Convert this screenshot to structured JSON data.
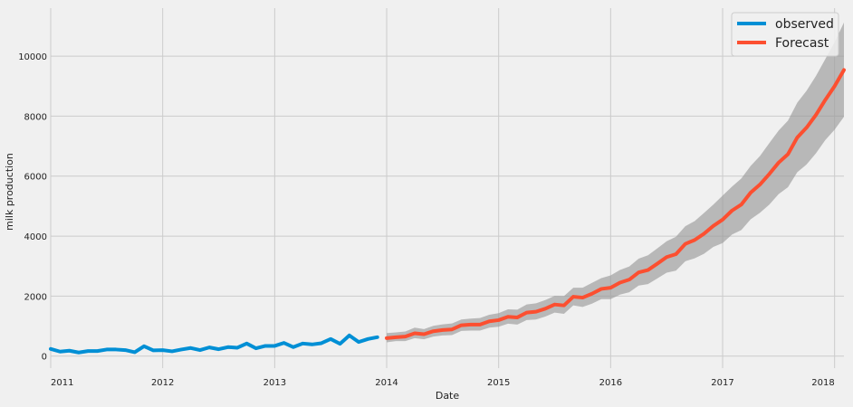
{
  "chart_data": {
    "type": "line",
    "title": "",
    "xlabel": "Date",
    "ylabel": "milk production",
    "xlim": [
      "2011-01",
      "2018-02"
    ],
    "ylim": [
      -400,
      11600
    ],
    "grid": true,
    "legend_position": "top-right",
    "x_ticks": [
      "2011",
      "2012",
      "2013",
      "2014",
      "2015",
      "2016",
      "2017",
      "2018"
    ],
    "y_ticks": [
      0,
      2000,
      4000,
      6000,
      8000,
      10000
    ],
    "series": [
      {
        "name": "observed",
        "color": "#008fd5",
        "x": [
          "2011-01",
          "2011-02",
          "2011-03",
          "2011-04",
          "2011-05",
          "2011-06",
          "2011-07",
          "2011-08",
          "2011-09",
          "2011-10",
          "2011-11",
          "2011-12",
          "2012-01",
          "2012-02",
          "2012-03",
          "2012-04",
          "2012-05",
          "2012-06",
          "2012-07",
          "2012-08",
          "2012-09",
          "2012-10",
          "2012-11",
          "2012-12",
          "2013-01",
          "2013-02",
          "2013-03",
          "2013-04",
          "2013-05",
          "2013-06",
          "2013-07",
          "2013-08",
          "2013-09",
          "2013-10",
          "2013-11",
          "2013-12"
        ],
        "values": [
          240,
          150,
          180,
          120,
          170,
          170,
          220,
          220,
          200,
          130,
          330,
          190,
          200,
          160,
          220,
          270,
          200,
          290,
          230,
          300,
          280,
          420,
          260,
          340,
          340,
          440,
          300,
          420,
          390,
          430,
          570,
          410,
          690,
          470,
          570,
          630
        ]
      },
      {
        "name": "Forecast",
        "color": "#fc4f30",
        "x": [
          "2014-01",
          "2014-02",
          "2014-03",
          "2014-04",
          "2014-05",
          "2014-06",
          "2014-07",
          "2014-08",
          "2014-09",
          "2014-10",
          "2014-11",
          "2014-12",
          "2015-01",
          "2015-02",
          "2015-03",
          "2015-04",
          "2015-05",
          "2015-06",
          "2015-07",
          "2015-08",
          "2015-09",
          "2015-10",
          "2015-11",
          "2015-12",
          "2016-01",
          "2016-02",
          "2016-03",
          "2016-04",
          "2016-05",
          "2016-06",
          "2016-07",
          "2016-08",
          "2016-09",
          "2016-10",
          "2016-11",
          "2016-12",
          "2017-01",
          "2017-02",
          "2017-03",
          "2017-04",
          "2017-05",
          "2017-06",
          "2017-07",
          "2017-08",
          "2017-09",
          "2017-10",
          "2017-11",
          "2017-12",
          "2018-01",
          "2018-02"
        ],
        "values": [
          600,
          630,
          650,
          760,
          730,
          830,
          870,
          890,
          1030,
          1050,
          1050,
          1160,
          1200,
          1310,
          1290,
          1450,
          1480,
          1580,
          1720,
          1690,
          1980,
          1950,
          2080,
          2240,
          2280,
          2450,
          2550,
          2790,
          2870,
          3080,
          3300,
          3400,
          3740,
          3870,
          4080,
          4340,
          4550,
          4850,
          5050,
          5450,
          5720,
          6070,
          6450,
          6730,
          7290,
          7620,
          8040,
          8540,
          9000,
          9540
        ],
        "lower": [
          460,
          500,
          500,
          600,
          560,
          650,
          690,
          700,
          840,
          850,
          850,
          950,
          980,
          1080,
          1050,
          1200,
          1220,
          1320,
          1450,
          1410,
          1690,
          1640,
          1750,
          1900,
          1900,
          2050,
          2130,
          2350,
          2400,
          2590,
          2780,
          2850,
          3160,
          3260,
          3410,
          3640,
          3770,
          4050,
          4200,
          4560,
          4780,
          5050,
          5400,
          5630,
          6130,
          6390,
          6760,
          7200,
          7550,
          7980
        ],
        "upper": [
          770,
          790,
          820,
          950,
          900,
          1010,
          1060,
          1090,
          1220,
          1250,
          1270,
          1380,
          1430,
          1560,
          1550,
          1720,
          1760,
          1870,
          2010,
          2000,
          2280,
          2280,
          2440,
          2600,
          2690,
          2870,
          2990,
          3250,
          3360,
          3590,
          3830,
          3980,
          4330,
          4500,
          4770,
          5050,
          5350,
          5650,
          5920,
          6340,
          6670,
          7100,
          7520,
          7850,
          8450,
          8850,
          9340,
          9900,
          10460,
          11120
        ]
      }
    ]
  }
}
